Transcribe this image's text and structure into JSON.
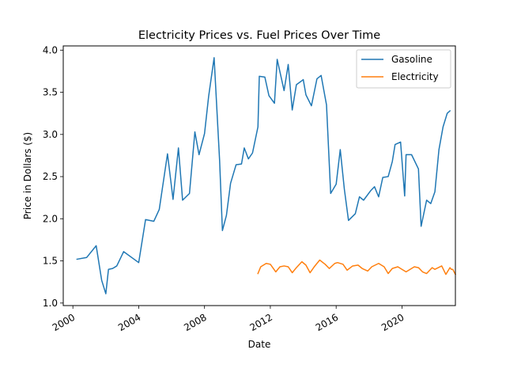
{
  "chart_data": {
    "type": "line",
    "title": "Electricity Prices vs. Fuel Prices Over Time",
    "xlabel": "Date",
    "ylabel": "Price in Dollars ($)",
    "xlim": [
      "1999-06-01",
      "2023-04-01"
    ],
    "ylim": [
      0.97,
      4.05
    ],
    "x_ticks": [
      "2000",
      "2004",
      "2008",
      "2012",
      "2016",
      "2020"
    ],
    "y_ticks": [
      "1.0",
      "1.5",
      "2.0",
      "2.5",
      "3.0",
      "3.5",
      "4.0"
    ],
    "legend_position": "upper right",
    "series": [
      {
        "name": "Gasoline",
        "color": "#1f77b4",
        "points": [
          [
            "2000-04-01",
            1.52
          ],
          [
            "2000-11-01",
            1.54
          ],
          [
            "2001-06-01",
            1.68
          ],
          [
            "2001-10-01",
            1.27
          ],
          [
            "2002-01-01",
            1.11
          ],
          [
            "2002-03-01",
            1.4
          ],
          [
            "2002-06-01",
            1.41
          ],
          [
            "2002-09-01",
            1.44
          ],
          [
            "2003-02-01",
            1.61
          ],
          [
            "2004-01-01",
            1.48
          ],
          [
            "2004-06-01",
            1.99
          ],
          [
            "2004-12-01",
            1.97
          ],
          [
            "2005-04-01",
            2.11
          ],
          [
            "2005-10-01",
            2.77
          ],
          [
            "2006-02-01",
            2.23
          ],
          [
            "2006-06-01",
            2.84
          ],
          [
            "2006-09-01",
            2.22
          ],
          [
            "2007-02-01",
            2.3
          ],
          [
            "2007-06-01",
            3.03
          ],
          [
            "2007-09-01",
            2.76
          ],
          [
            "2008-01-01",
            3.01
          ],
          [
            "2008-04-01",
            3.45
          ],
          [
            "2008-08-01",
            3.91
          ],
          [
            "2008-12-01",
            2.69
          ],
          [
            "2009-02-01",
            1.86
          ],
          [
            "2009-05-01",
            2.04
          ],
          [
            "2009-08-01",
            2.42
          ],
          [
            "2009-12-01",
            2.64
          ],
          [
            "2010-04-01",
            2.65
          ],
          [
            "2010-06-01",
            2.84
          ],
          [
            "2010-09-01",
            2.71
          ],
          [
            "2010-12-01",
            2.78
          ],
          [
            "2011-04-01",
            3.09
          ],
          [
            "2011-05-01",
            3.69
          ],
          [
            "2011-09-01",
            3.68
          ],
          [
            "2011-12-01",
            3.46
          ],
          [
            "2012-04-01",
            3.37
          ],
          [
            "2012-06-01",
            3.89
          ],
          [
            "2012-11-01",
            3.52
          ],
          [
            "2013-02-01",
            3.83
          ],
          [
            "2013-05-01",
            3.29
          ],
          [
            "2013-08-01",
            3.59
          ],
          [
            "2014-01-01",
            3.65
          ],
          [
            "2014-03-01",
            3.47
          ],
          [
            "2014-07-01",
            3.34
          ],
          [
            "2014-11-01",
            3.66
          ],
          [
            "2015-02-01",
            3.7
          ],
          [
            "2015-06-01",
            3.35
          ],
          [
            "2015-09-01",
            2.3
          ],
          [
            "2016-01-01",
            2.41
          ],
          [
            "2016-04-01",
            2.82
          ],
          [
            "2016-07-01",
            2.35
          ],
          [
            "2016-10-01",
            1.98
          ],
          [
            "2017-03-01",
            2.06
          ],
          [
            "2017-06-01",
            2.26
          ],
          [
            "2017-09-01",
            2.22
          ],
          [
            "2018-02-01",
            2.33
          ],
          [
            "2018-05-01",
            2.38
          ],
          [
            "2018-08-01",
            2.26
          ],
          [
            "2018-11-01",
            2.49
          ],
          [
            "2019-03-01",
            2.5
          ],
          [
            "2019-06-01",
            2.68
          ],
          [
            "2019-08-01",
            2.88
          ],
          [
            "2019-12-01",
            2.91
          ],
          [
            "2020-03-01",
            2.27
          ],
          [
            "2020-04-01",
            2.76
          ],
          [
            "2020-08-01",
            2.76
          ],
          [
            "2021-01-01",
            2.59
          ],
          [
            "2021-03-01",
            1.91
          ],
          [
            "2021-07-01",
            2.22
          ],
          [
            "2021-10-01",
            2.18
          ],
          [
            "2022-01-01",
            2.32
          ],
          [
            "2022-04-01",
            2.82
          ],
          [
            "2022-07-01",
            3.09
          ],
          [
            "2022-10-01",
            3.25
          ],
          [
            "2022-12-01",
            3.28
          ]
        ]
      },
      {
        "name": "Electricity",
        "color": "#ff7f0e",
        "points": [
          [
            "2011-04-01",
            1.35
          ],
          [
            "2011-06-01",
            1.43
          ],
          [
            "2011-10-01",
            1.47
          ],
          [
            "2012-01-01",
            1.46
          ],
          [
            "2012-05-01",
            1.37
          ],
          [
            "2012-08-01",
            1.43
          ],
          [
            "2012-11-01",
            1.44
          ],
          [
            "2013-02-01",
            1.43
          ],
          [
            "2013-05-01",
            1.36
          ],
          [
            "2013-08-01",
            1.42
          ],
          [
            "2013-12-01",
            1.49
          ],
          [
            "2014-03-01",
            1.45
          ],
          [
            "2014-06-01",
            1.36
          ],
          [
            "2014-09-01",
            1.43
          ],
          [
            "2015-01-01",
            1.51
          ],
          [
            "2015-05-01",
            1.46
          ],
          [
            "2015-08-01",
            1.41
          ],
          [
            "2015-12-01",
            1.47
          ],
          [
            "2016-02-01",
            1.48
          ],
          [
            "2016-06-01",
            1.46
          ],
          [
            "2016-09-01",
            1.39
          ],
          [
            "2017-01-01",
            1.44
          ],
          [
            "2017-05-01",
            1.45
          ],
          [
            "2017-08-01",
            1.41
          ],
          [
            "2017-12-01",
            1.38
          ],
          [
            "2018-03-01",
            1.43
          ],
          [
            "2018-08-01",
            1.47
          ],
          [
            "2018-12-01",
            1.43
          ],
          [
            "2019-03-01",
            1.35
          ],
          [
            "2019-06-01",
            1.41
          ],
          [
            "2019-10-01",
            1.43
          ],
          [
            "2020-01-01",
            1.4
          ],
          [
            "2020-04-01",
            1.37
          ],
          [
            "2020-10-01",
            1.43
          ],
          [
            "2021-01-01",
            1.42
          ],
          [
            "2021-04-01",
            1.37
          ],
          [
            "2021-07-01",
            1.35
          ],
          [
            "2021-11-01",
            1.42
          ],
          [
            "2022-01-01",
            1.4
          ],
          [
            "2022-06-01",
            1.44
          ],
          [
            "2022-09-01",
            1.34
          ],
          [
            "2022-12-01",
            1.42
          ],
          [
            "2023-01-01",
            1.4
          ],
          [
            "2023-02-01",
            1.4
          ],
          [
            "2023-04-01",
            1.34
          ]
        ]
      }
    ]
  }
}
